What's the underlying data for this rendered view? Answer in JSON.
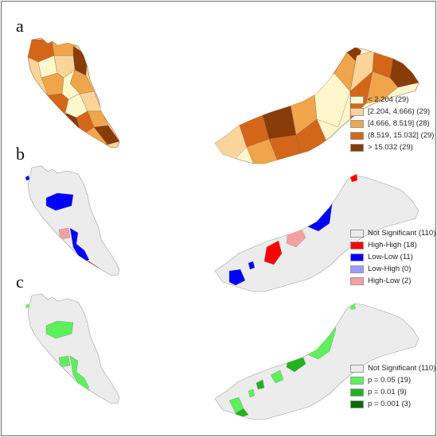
{
  "panels": [
    {
      "id": "a",
      "letter": "a",
      "legend": [
        {
          "label": "< 2.204 (29)",
          "color": "#fff7cc"
        },
        {
          "label": "[2.204, 4.666) (29)",
          "color": "#fbd49a"
        },
        {
          "label": "[4.666, 8.519] (28)",
          "color": "#f0a54a"
        },
        {
          "label": "(8.519, 15.032] (29)",
          "color": "#d4661a"
        },
        {
          "label": "> 15.032 (29)",
          "color": "#8a3b0a"
        }
      ]
    },
    {
      "id": "b",
      "letter": "b",
      "legend": [
        {
          "label": "Not Significant (110)",
          "color": "#ececec"
        },
        {
          "label": "High-High (18)",
          "color": "#ff0000"
        },
        {
          "label": "Low-Low (11)",
          "color": "#0000ff"
        },
        {
          "label": "Low-High (0)",
          "color": "#9a9aff"
        },
        {
          "label": "High-Low (2)",
          "color": "#f5a0a0"
        }
      ]
    },
    {
      "id": "c",
      "letter": "c",
      "legend": [
        {
          "label": "Not Significant (110)",
          "color": "#ececec"
        },
        {
          "label": "p = 0.05 (19)",
          "color": "#5cf05c"
        },
        {
          "label": "p = 0.01 (9)",
          "color": "#1fb31f"
        },
        {
          "label": "p = 0.001 (3)",
          "color": "#0a6a0a"
        }
      ]
    }
  ]
}
